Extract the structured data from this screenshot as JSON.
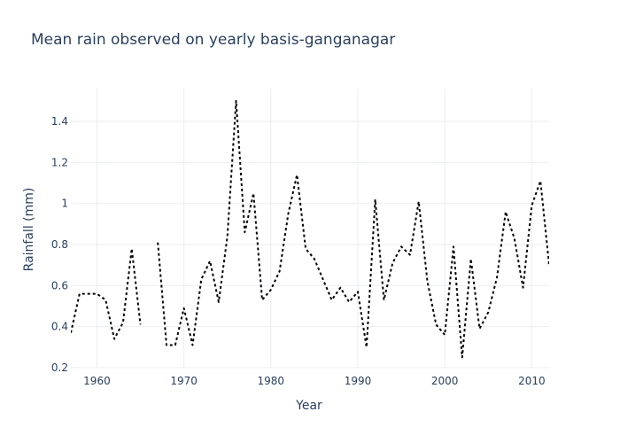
{
  "chart_data": {
    "type": "line",
    "title": "Mean rain observed on yearly basis-ganganagar",
    "xlabel": "Year",
    "ylabel": "Rainfall (mm)",
    "xlim": [
      1957,
      2012
    ],
    "ylim": [
      0.2,
      1.56
    ],
    "x_ticks": [
      1960,
      1970,
      1980,
      1990,
      2000,
      2010
    ],
    "y_ticks": [
      0.2,
      0.4,
      0.6,
      0.8,
      1.0,
      1.2,
      1.4
    ],
    "y_tick_labels": [
      "0.2",
      "0.4",
      "0.6",
      "0.8",
      "1",
      "1.2",
      "1.4"
    ],
    "grid": true,
    "legend": "none",
    "line_style": "dotted",
    "line_color": "#000000",
    "series": [
      {
        "x": [
          1957,
          1958,
          1959,
          1960,
          1961,
          1962,
          1963,
          1964,
          1965,
          1966,
          1967,
          1968,
          1969,
          1970,
          1971,
          1972,
          1973,
          1974,
          1975,
          1976,
          1977,
          1978,
          1979,
          1980,
          1981,
          1982,
          1983,
          1984,
          1985,
          1986,
          1987,
          1988,
          1989,
          1990,
          1991,
          1992,
          1993,
          1994,
          1995,
          1996,
          1997,
          1998,
          1999,
          2000,
          2001,
          2002,
          2003,
          2004,
          2005,
          2006,
          2007,
          2008,
          2009,
          2010,
          2011,
          2012
        ],
        "values": [
          0.37,
          0.56,
          0.56,
          0.56,
          0.53,
          0.34,
          0.42,
          0.78,
          0.41,
          null,
          0.81,
          0.31,
          0.31,
          0.49,
          0.31,
          0.63,
          0.72,
          0.52,
          0.84,
          1.5,
          0.86,
          1.05,
          0.53,
          0.58,
          0.67,
          0.95,
          1.14,
          0.78,
          0.73,
          0.63,
          0.53,
          0.59,
          0.52,
          0.57,
          0.3,
          1.02,
          0.53,
          0.71,
          0.79,
          0.75,
          1.01,
          0.62,
          0.41,
          0.36,
          0.79,
          0.25,
          0.73,
          0.39,
          0.47,
          0.64,
          0.96,
          0.83,
          0.59,
          0.99,
          1.11,
          0.7
        ]
      }
    ]
  }
}
